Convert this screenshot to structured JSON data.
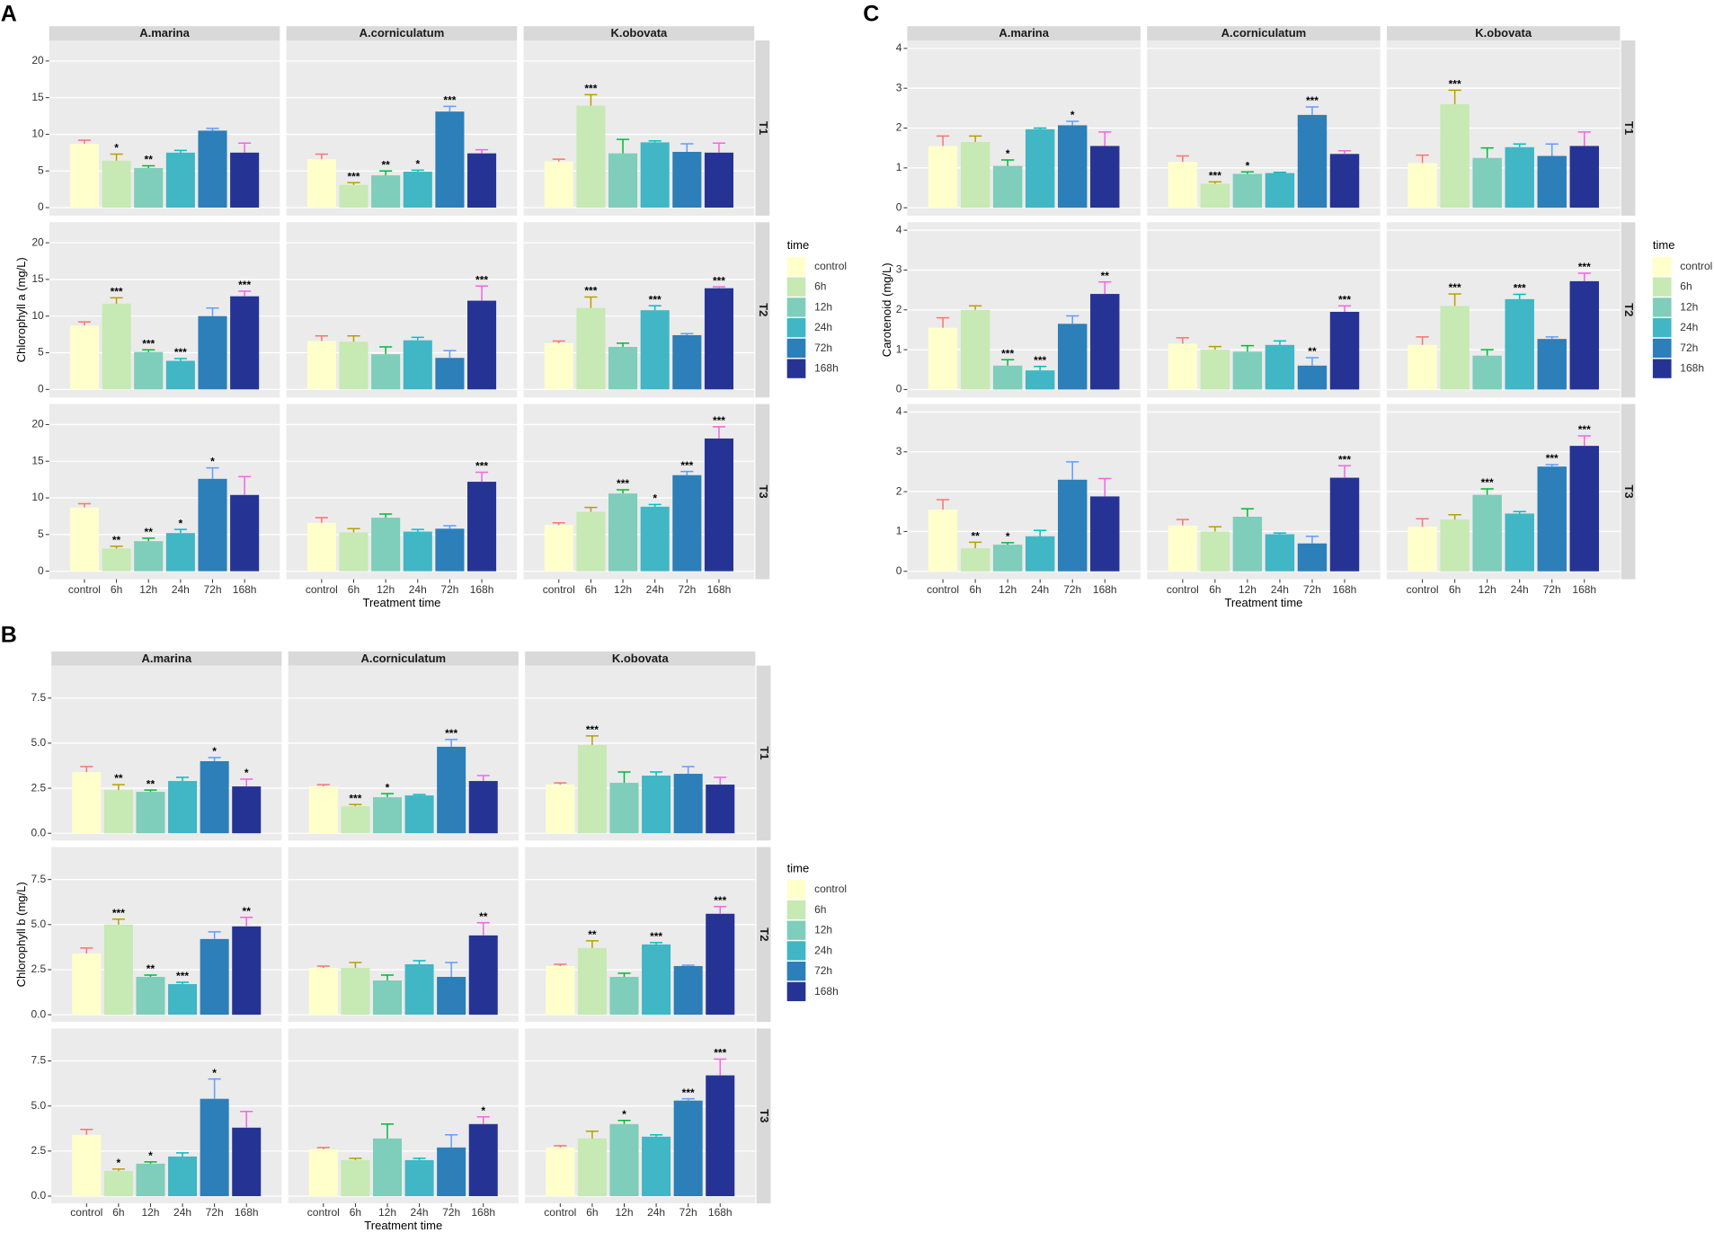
{
  "chart_data": [
    {
      "type": "bar",
      "panel_label": "A",
      "y_label": "Chlorophyll a (mg/L)",
      "x_label": "Treatment time",
      "facet_columns": [
        "A.marina",
        "A.corniculatum",
        "K.obovata"
      ],
      "facet_rows": [
        "T1",
        "T2",
        "T3"
      ],
      "categories": [
        "control",
        "6h",
        "12h",
        "24h",
        "72h",
        "168h"
      ],
      "colors": [
        "#ffffcc",
        "#c7e9b4",
        "#7fcdbb",
        "#41b6c4",
        "#2c7fb8",
        "#253494"
      ],
      "error_colors": [
        "#f8766d",
        "#b79f00",
        "#00ba38",
        "#00bfc4",
        "#619cff",
        "#f564e3"
      ],
      "legend_title": "time",
      "ylim": [
        -1.1,
        22.8
      ],
      "yticks": [
        0,
        5,
        10,
        15,
        20
      ],
      "grid": true,
      "values": [
        [
          [
            8.7,
            6.4,
            5.4,
            7.5,
            10.5,
            7.5
          ],
          [
            6.6,
            3.1,
            4.4,
            4.9,
            13.1,
            7.4
          ],
          [
            6.3,
            13.9,
            7.4,
            8.9,
            7.6,
            7.5
          ]
        ],
        [
          [
            8.7,
            11.7,
            5.1,
            3.9,
            10.0,
            12.7
          ],
          [
            6.6,
            6.5,
            4.8,
            6.7,
            4.3,
            12.1
          ],
          [
            6.3,
            11.1,
            5.8,
            10.8,
            7.4,
            13.8
          ]
        ],
        [
          [
            8.7,
            3.1,
            4.1,
            5.2,
            12.6,
            10.4
          ],
          [
            6.6,
            5.3,
            7.3,
            5.4,
            5.8,
            12.2
          ],
          [
            6.3,
            8.1,
            10.6,
            8.8,
            13.1,
            18.1
          ]
        ]
      ],
      "errors": [
        [
          [
            0.5,
            0.9,
            0.3,
            0.3,
            0.3,
            1.3
          ],
          [
            0.7,
            0.3,
            0.6,
            0.2,
            0.7,
            0.5
          ],
          [
            0.3,
            1.5,
            1.9,
            0.2,
            1.1,
            1.3
          ]
        ],
        [
          [
            0.5,
            0.8,
            0.3,
            0.3,
            1.1,
            0.7
          ],
          [
            0.7,
            0.8,
            1.0,
            0.4,
            1.0,
            2.0
          ],
          [
            0.3,
            1.5,
            0.5,
            0.6,
            0.2,
            0.2
          ]
        ],
        [
          [
            0.5,
            0.3,
            0.4,
            0.5,
            1.5,
            2.5
          ],
          [
            0.7,
            0.5,
            0.5,
            0.3,
            0.4,
            1.3
          ],
          [
            0.3,
            0.6,
            0.5,
            0.3,
            0.5,
            1.6
          ]
        ]
      ],
      "significance": [
        [
          [
            null,
            "*",
            "**",
            null,
            null,
            null
          ],
          [
            null,
            "***",
            "**",
            "*",
            "***",
            null
          ],
          [
            null,
            "***",
            null,
            null,
            null,
            null
          ]
        ],
        [
          [
            null,
            "***",
            "***",
            "***",
            null,
            "***"
          ],
          [
            null,
            null,
            null,
            null,
            null,
            "***"
          ],
          [
            null,
            "***",
            null,
            "***",
            null,
            "***"
          ]
        ],
        [
          [
            null,
            "**",
            "**",
            "*",
            "*",
            null
          ],
          [
            null,
            null,
            null,
            null,
            null,
            "***"
          ],
          [
            null,
            null,
            "***",
            "*",
            "***",
            "***"
          ]
        ]
      ]
    },
    {
      "type": "bar",
      "panel_label": "B",
      "y_label": "Chlorophyll b (mg/L)",
      "x_label": "Treatment time",
      "facet_columns": [
        "A.marina",
        "A.corniculatum",
        "K.obovata"
      ],
      "facet_rows": [
        "T1",
        "T2",
        "T3"
      ],
      "categories": [
        "control",
        "6h",
        "12h",
        "24h",
        "72h",
        "168h"
      ],
      "colors": [
        "#ffffcc",
        "#c7e9b4",
        "#7fcdbb",
        "#41b6c4",
        "#2c7fb8",
        "#253494"
      ],
      "error_colors": [
        "#f8766d",
        "#b79f00",
        "#00ba38",
        "#00bfc4",
        "#619cff",
        "#f564e3"
      ],
      "legend_title": "time",
      "ylim": [
        -0.4,
        9.3
      ],
      "yticks": [
        {
          "value": 0,
          "label": "0.0"
        },
        {
          "value": 2.5,
          "label": "2.5"
        },
        {
          "value": 5,
          "label": "5.0"
        },
        {
          "value": 7.5,
          "label": "7.5"
        }
      ],
      "grid": true,
      "values": [
        [
          [
            3.4,
            2.4,
            2.3,
            2.9,
            4.0,
            2.6
          ],
          [
            2.6,
            1.5,
            2.0,
            2.1,
            4.8,
            2.9
          ],
          [
            2.7,
            4.9,
            2.8,
            3.2,
            3.3,
            2.7
          ]
        ],
        [
          [
            3.4,
            5.0,
            2.1,
            1.7,
            4.2,
            4.9
          ],
          [
            2.6,
            2.6,
            1.9,
            2.8,
            2.1,
            4.4
          ],
          [
            2.7,
            3.7,
            2.1,
            3.9,
            2.7,
            5.6
          ]
        ],
        [
          [
            3.4,
            1.4,
            1.8,
            2.2,
            5.4,
            3.8
          ],
          [
            2.6,
            2.0,
            3.2,
            2.0,
            2.7,
            4.0
          ],
          [
            2.7,
            3.2,
            4.0,
            3.3,
            5.3,
            6.7
          ]
        ]
      ],
      "errors": [
        [
          [
            0.3,
            0.3,
            0.1,
            0.2,
            0.2,
            0.4
          ],
          [
            0.1,
            0.1,
            0.2,
            0.05,
            0.4,
            0.3
          ],
          [
            0.1,
            0.5,
            0.6,
            0.2,
            0.4,
            0.4
          ]
        ],
        [
          [
            0.3,
            0.3,
            0.1,
            0.1,
            0.4,
            0.5
          ],
          [
            0.1,
            0.3,
            0.3,
            0.2,
            0.8,
            0.7
          ],
          [
            0.1,
            0.4,
            0.2,
            0.1,
            0.05,
            0.4
          ]
        ],
        [
          [
            0.3,
            0.1,
            0.1,
            0.2,
            1.1,
            0.9
          ],
          [
            0.1,
            0.1,
            0.8,
            0.1,
            0.7,
            0.4
          ],
          [
            0.1,
            0.4,
            0.2,
            0.1,
            0.1,
            0.9
          ]
        ]
      ],
      "significance": [
        [
          [
            null,
            "**",
            "**",
            null,
            "*",
            "*"
          ],
          [
            null,
            "***",
            "*",
            null,
            "***",
            null
          ],
          [
            null,
            "***",
            null,
            null,
            null,
            null
          ]
        ],
        [
          [
            null,
            "***",
            "**",
            "***",
            null,
            "**"
          ],
          [
            null,
            null,
            null,
            null,
            null,
            "**"
          ],
          [
            null,
            "**",
            null,
            "***",
            null,
            "***"
          ]
        ],
        [
          [
            null,
            "*",
            "*",
            null,
            "*",
            null
          ],
          [
            null,
            null,
            null,
            null,
            null,
            "*"
          ],
          [
            null,
            null,
            "*",
            null,
            "***",
            "***"
          ]
        ]
      ]
    },
    {
      "type": "bar",
      "panel_label": "C",
      "y_label": "Carotenoid (mg/L)",
      "x_label": "Treatment time",
      "facet_columns": [
        "A.marina",
        "A.corniculatum",
        "K.obovata"
      ],
      "facet_rows": [
        "T1",
        "T2",
        "T3"
      ],
      "categories": [
        "control",
        "6h",
        "12h",
        "24h",
        "72h",
        "168h"
      ],
      "colors": [
        "#ffffcc",
        "#c7e9b4",
        "#7fcdbb",
        "#41b6c4",
        "#2c7fb8",
        "#253494"
      ],
      "error_colors": [
        "#f8766d",
        "#b79f00",
        "#00ba38",
        "#00bfc4",
        "#619cff",
        "#f564e3"
      ],
      "legend_title": "time",
      "ylim": [
        -0.2,
        4.2
      ],
      "yticks": [
        0,
        1,
        2,
        3,
        4
      ],
      "grid": true,
      "values": [
        [
          [
            1.55,
            1.65,
            1.05,
            1.97,
            2.07,
            1.55
          ],
          [
            1.15,
            0.6,
            0.85,
            0.87,
            2.33,
            1.35
          ],
          [
            1.12,
            2.6,
            1.25,
            1.52,
            1.3,
            1.55
          ]
        ],
        [
          [
            1.55,
            2.0,
            0.6,
            0.48,
            1.65,
            2.4
          ],
          [
            1.15,
            1.0,
            0.95,
            1.12,
            0.6,
            1.95
          ],
          [
            1.12,
            2.1,
            0.85,
            2.27,
            1.27,
            2.72
          ]
        ],
        [
          [
            1.55,
            0.58,
            0.67,
            0.88,
            2.3,
            1.88
          ],
          [
            1.15,
            1.0,
            1.37,
            0.93,
            0.7,
            2.35
          ],
          [
            1.12,
            1.3,
            1.92,
            1.45,
            2.63,
            3.15
          ]
        ]
      ],
      "errors": [
        [
          [
            0.25,
            0.15,
            0.15,
            0.03,
            0.1,
            0.35
          ],
          [
            0.15,
            0.05,
            0.05,
            0.02,
            0.2,
            0.08
          ],
          [
            0.2,
            0.35,
            0.25,
            0.08,
            0.3,
            0.35
          ]
        ],
        [
          [
            0.25,
            0.1,
            0.15,
            0.1,
            0.2,
            0.3
          ],
          [
            0.15,
            0.08,
            0.15,
            0.1,
            0.2,
            0.15
          ],
          [
            0.2,
            0.3,
            0.15,
            0.12,
            0.05,
            0.2
          ]
        ],
        [
          [
            0.25,
            0.15,
            0.05,
            0.15,
            0.45,
            0.45
          ],
          [
            0.15,
            0.12,
            0.2,
            0.03,
            0.18,
            0.3
          ],
          [
            0.2,
            0.12,
            0.15,
            0.05,
            0.05,
            0.25
          ]
        ]
      ],
      "significance": [
        [
          [
            null,
            null,
            "*",
            null,
            "*",
            null
          ],
          [
            null,
            "***",
            "*",
            null,
            "***",
            null
          ],
          [
            null,
            "***",
            null,
            null,
            null,
            null
          ]
        ],
        [
          [
            null,
            null,
            "***",
            "***",
            null,
            "**"
          ],
          [
            null,
            null,
            null,
            null,
            "**",
            "***"
          ],
          [
            null,
            "***",
            null,
            "***",
            null,
            "***"
          ]
        ],
        [
          [
            null,
            "**",
            "*",
            null,
            null,
            null
          ],
          [
            null,
            null,
            null,
            null,
            null,
            "***"
          ],
          [
            null,
            null,
            "***",
            null,
            "***",
            "***"
          ]
        ]
      ]
    }
  ]
}
